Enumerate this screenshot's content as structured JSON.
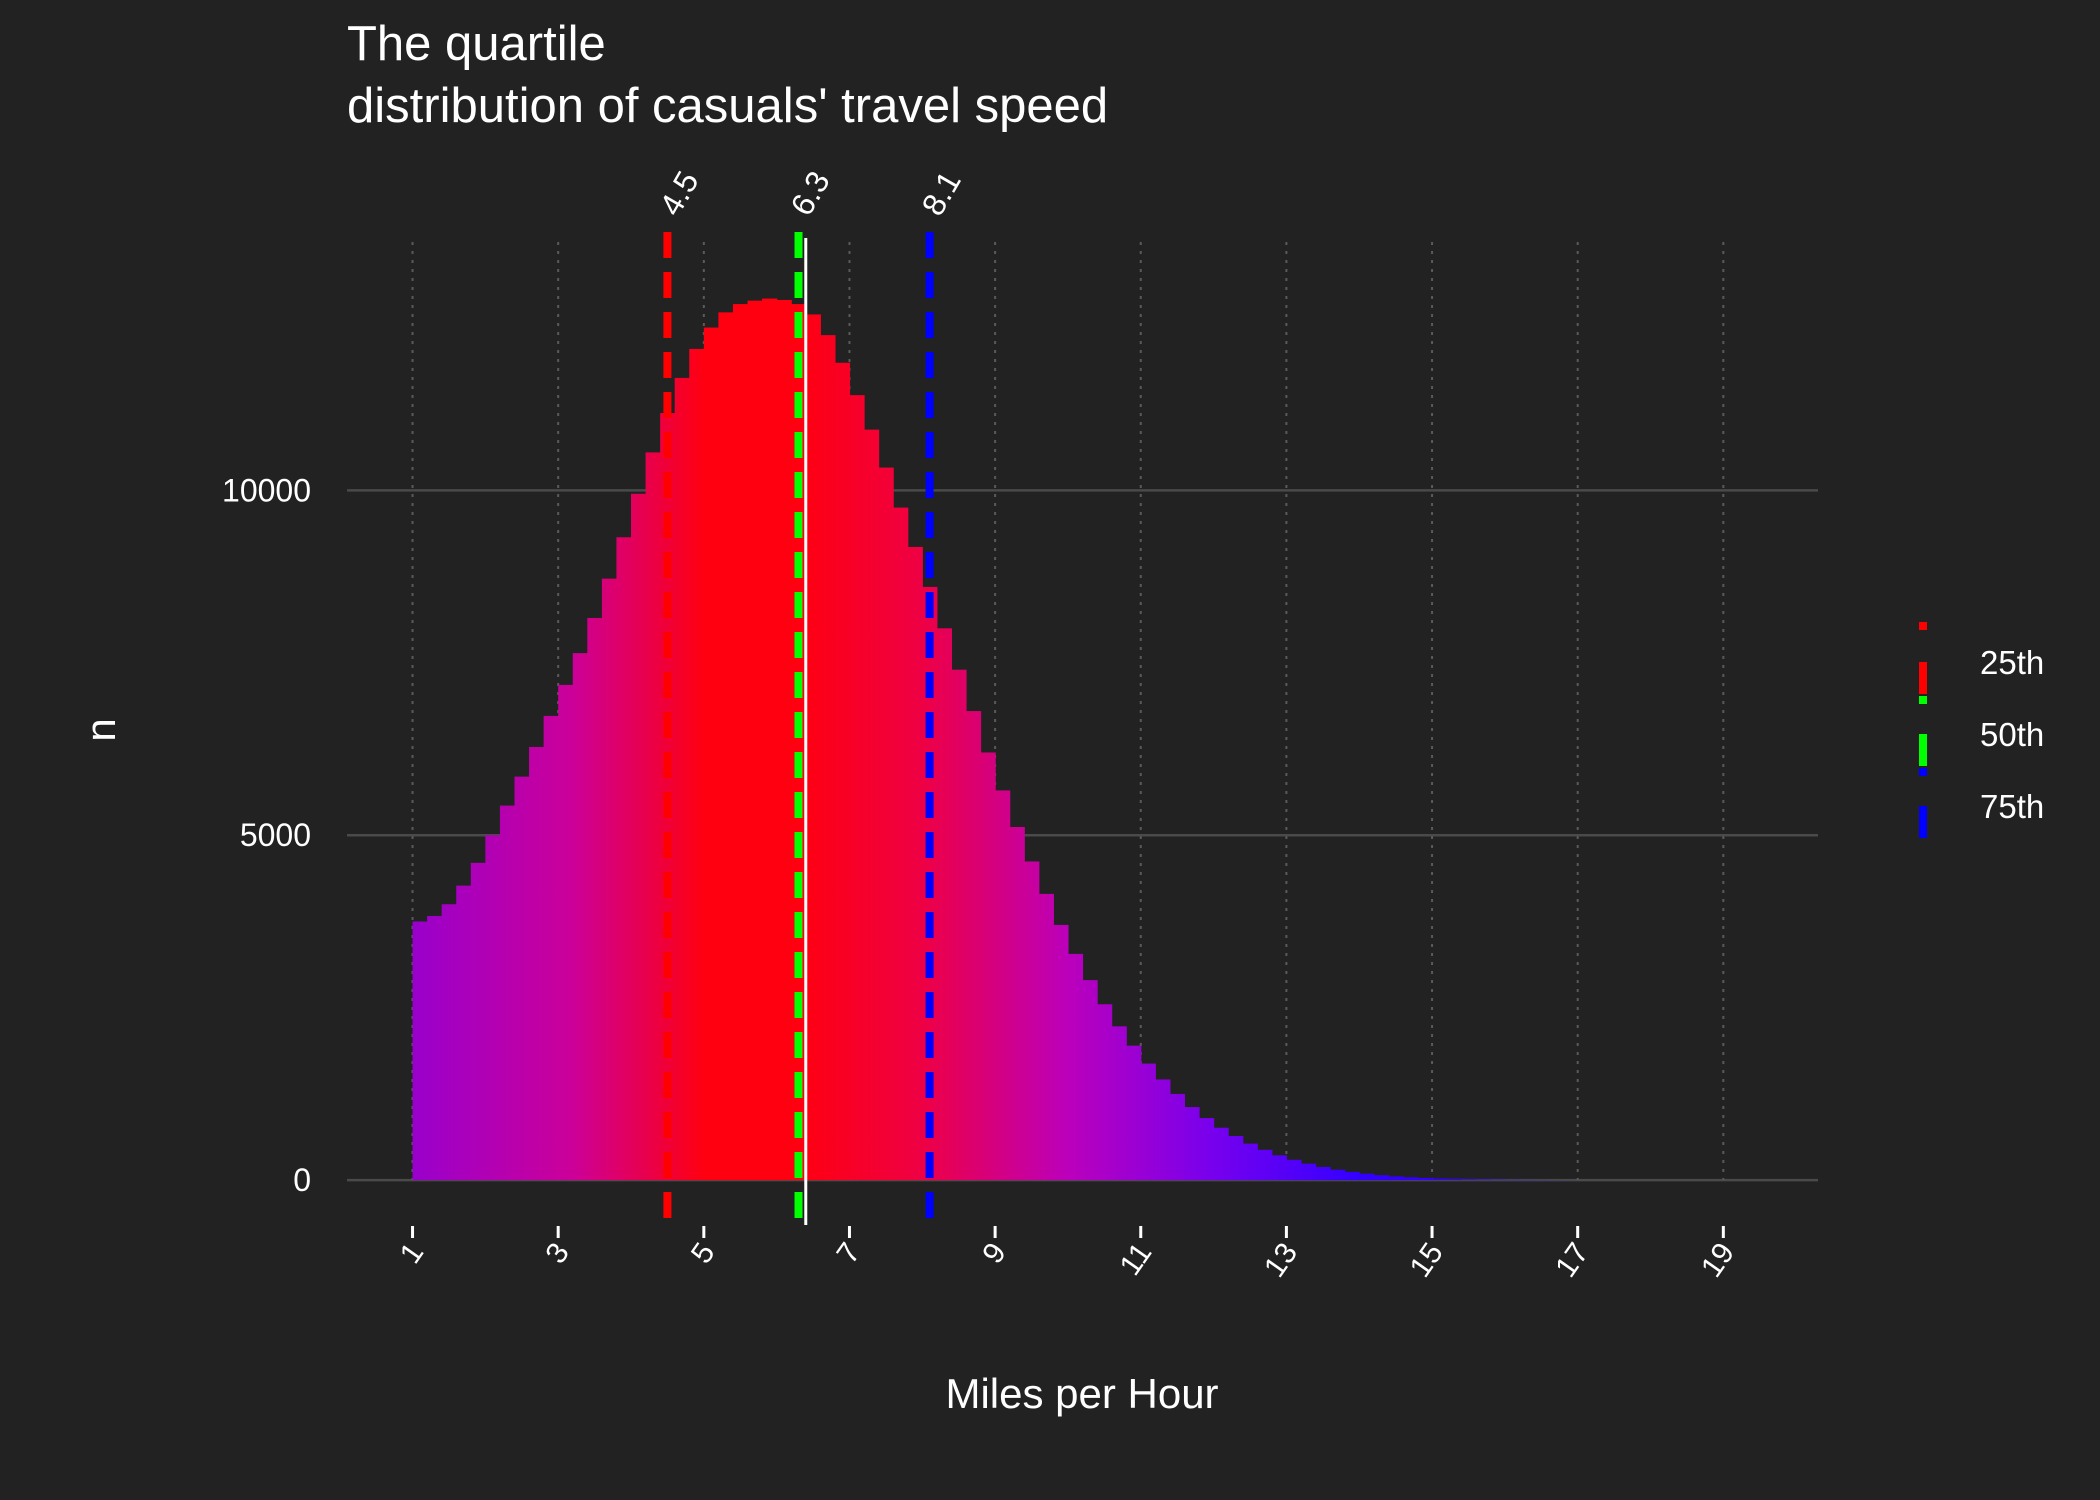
{
  "chart_data": {
    "type": "bar",
    "title": [
      "The quartile",
      "distribution of casuals' travel speed"
    ],
    "xlabel": "Miles per Hour",
    "ylabel": "n",
    "xlim": [
      0.1,
      20.3
    ],
    "ylim": [
      -650,
      13600
    ],
    "xticks": [
      1,
      3,
      5,
      7,
      9,
      11,
      13,
      15,
      17,
      19
    ],
    "yticks": [
      0,
      5000,
      10000
    ],
    "grid": true,
    "legend_position": "right",
    "background_color": "#222222",
    "grid_color": "#4a4a4a",
    "gradient_colors": {
      "low": "#3300ff",
      "mid": "#9900cc",
      "high": "#ff0011"
    },
    "bins": {
      "x": [
        1.1,
        1.3,
        1.5,
        1.7,
        1.9,
        2.1,
        2.3,
        2.5,
        2.7,
        2.9,
        3.1,
        3.3,
        3.5,
        3.7,
        3.9,
        4.1,
        4.3,
        4.5,
        4.7,
        4.9,
        5.1,
        5.3,
        5.5,
        5.7,
        5.9,
        6.1,
        6.3,
        6.5,
        6.7,
        6.9,
        7.1,
        7.3,
        7.5,
        7.7,
        7.9,
        8.1,
        8.3,
        8.5,
        8.7,
        8.9,
        9.1,
        9.3,
        9.5,
        9.7,
        9.9,
        10.1,
        10.3,
        10.5,
        10.7,
        10.9,
        11.1,
        11.3,
        11.5,
        11.7,
        11.9,
        12.1,
        12.3,
        12.5,
        12.7,
        12.9,
        13.1,
        13.3,
        13.5,
        13.7,
        13.9,
        14.1,
        14.3,
        14.5,
        14.7,
        14.9,
        15.1,
        15.3,
        15.5,
        15.7,
        15.9,
        16.1,
        16.3,
        16.5,
        16.7,
        16.9
      ],
      "n": [
        3750,
        3830,
        4000,
        4270,
        4600,
        5000,
        5430,
        5850,
        6280,
        6730,
        7180,
        7640,
        8150,
        8720,
        9320,
        9950,
        10550,
        11120,
        11630,
        12050,
        12360,
        12580,
        12700,
        12750,
        12780,
        12760,
        12700,
        12550,
        12250,
        11850,
        11380,
        10880,
        10330,
        9750,
        9180,
        8600,
        8000,
        7400,
        6800,
        6200,
        5650,
        5120,
        4620,
        4150,
        3700,
        3280,
        2900,
        2550,
        2230,
        1950,
        1690,
        1460,
        1250,
        1060,
        900,
        760,
        640,
        530,
        440,
        360,
        295,
        240,
        192,
        152,
        120,
        94,
        72,
        55,
        42,
        32,
        24,
        18,
        13,
        10,
        7,
        5,
        4,
        3,
        2,
        1
      ]
    },
    "quartiles": [
      {
        "name": "25th",
        "value": 4.5,
        "label": "4.5",
        "color": "#ff0000"
      },
      {
        "name": "50th",
        "value": 6.3,
        "label": "6.3",
        "color": "#00ff00"
      },
      {
        "name": "75th",
        "value": 8.1,
        "label": "8.1",
        "color": "#0000ff"
      }
    ],
    "mean_line": {
      "value": 6.4,
      "color": "#ffffff"
    }
  }
}
